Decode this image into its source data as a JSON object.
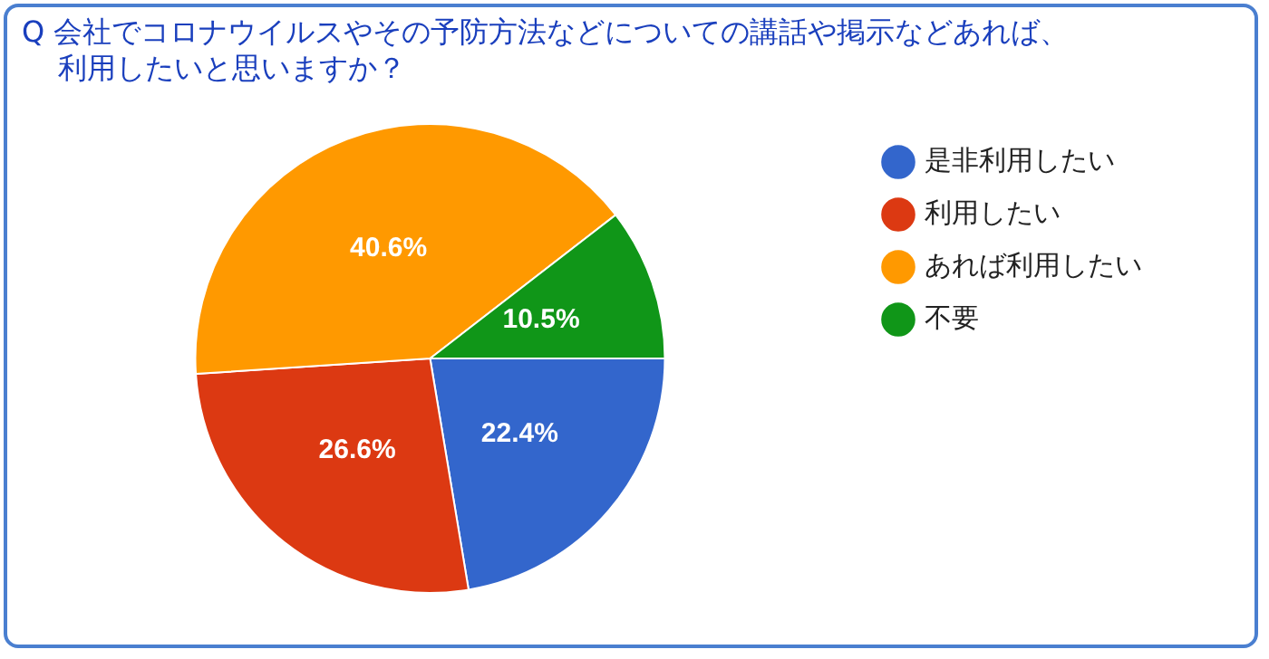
{
  "chart_data": {
    "type": "pie",
    "title": "Q  会社でコロナウイルスやその予防方法などについての講話や掲示などあれば、利用したいと思いますか？",
    "categories": [
      "是非利用したい",
      "利用したい",
      "あれば利用したい",
      "不要"
    ],
    "values": [
      22.4,
      26.6,
      40.6,
      10.5
    ],
    "colors": [
      "#3366cc",
      "#dc3912",
      "#ff9900",
      "#109618"
    ],
    "value_labels": [
      "22.4%",
      "26.6%",
      "40.6%",
      "10.5%"
    ],
    "legend": "right"
  }
}
